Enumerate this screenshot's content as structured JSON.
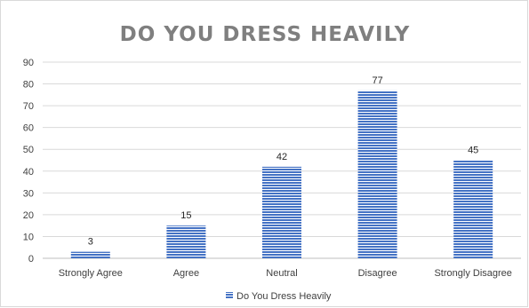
{
  "chart_data": {
    "type": "bar",
    "title": "DO YOU DRESS HEAVILY",
    "xlabel": "",
    "ylabel": "",
    "categories": [
      "Strongly Agree",
      "Agree",
      "Neutral",
      "Disagree",
      "Strongly Disagree"
    ],
    "series": [
      {
        "name": "Do You Dress Heavily",
        "values": [
          3,
          15,
          42,
          77,
          45
        ],
        "color": "#4472c4"
      }
    ],
    "ylim": [
      0,
      90
    ],
    "yticks": [
      0,
      10,
      20,
      30,
      40,
      50,
      60,
      70,
      80,
      90
    ],
    "grid": true,
    "data_labels": true,
    "legend": "bottom",
    "bar_fill": "horizontal-stripes"
  }
}
